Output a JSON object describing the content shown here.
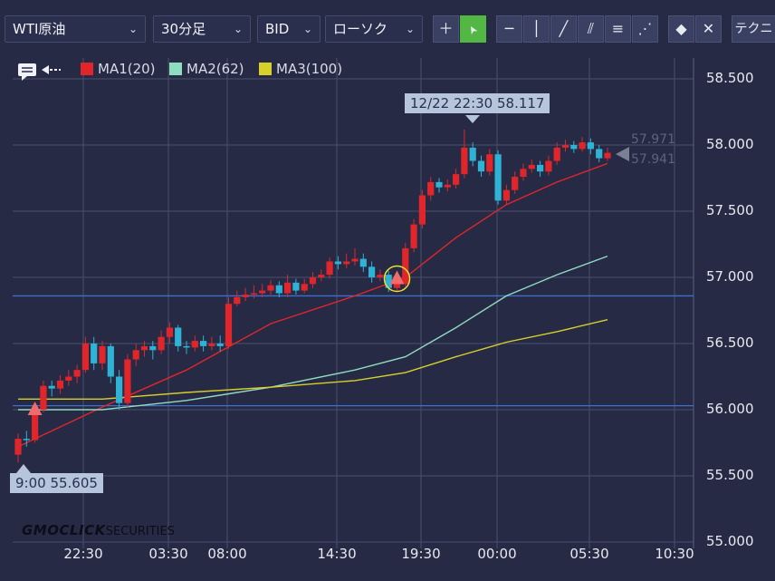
{
  "toolbar": {
    "symbol": "WTI原油",
    "timeframe": "30分足",
    "price_side": "BID",
    "chart_style": "ローソク",
    "technical_label": "テクニ",
    "tools": [
      {
        "icon": "crosshair-icon",
        "glyph": "＋"
      },
      {
        "icon": "pointer-icon",
        "glyph": "➤"
      },
      {
        "icon": "horizontal-line-icon",
        "glyph": "─"
      },
      {
        "icon": "vertical-line-icon",
        "glyph": "│"
      },
      {
        "icon": "trendline-icon",
        "glyph": "╱"
      },
      {
        "icon": "parallel-channel-icon",
        "glyph": "⫽"
      },
      {
        "icon": "fibonacci-retracement-icon",
        "glyph": "≡"
      },
      {
        "icon": "fibonacci-fan-icon",
        "glyph": "⋰"
      },
      {
        "icon": "eraser-icon",
        "glyph": "◆"
      },
      {
        "icon": "erase-all-icon",
        "glyph": "✕"
      }
    ]
  },
  "legend": {
    "ma1": {
      "label": "MA1(20)",
      "color": "#e0262b"
    },
    "ma2": {
      "label": "MA2(62)",
      "color": "#8fdcc0"
    },
    "ma3": {
      "label": "MA3(100)",
      "color": "#d8d02a"
    }
  },
  "y_axis": {
    "labels": [
      "58.500",
      "58.000",
      "57.500",
      "57.000",
      "56.500",
      "56.000",
      "55.500",
      "55.000"
    ]
  },
  "x_axis": {
    "labels": [
      "22:30",
      "03:30",
      "08:00",
      "14:30",
      "19:30",
      "00:00",
      "05:30",
      "10:30"
    ]
  },
  "high_tooltip": "12/22 22:30 58.117",
  "low_tooltip": "9:00 55.605",
  "last_prices": [
    "57.971",
    "57.941"
  ],
  "brand": {
    "main": "GMOCLICK",
    "sub": "SECURITIES"
  },
  "colors": {
    "up": "#e0262b",
    "down": "#2fb2d4",
    "grid": "#4a5070",
    "hline": "#3d6fd0"
  },
  "chart_data": {
    "type": "candlestick",
    "ylim": [
      55.0,
      58.5
    ],
    "x_ticks": [
      "22:30",
      "03:30",
      "08:00",
      "14:30",
      "19:30",
      "00:00",
      "05:30",
      "10:30"
    ],
    "horizontal_lines": [
      56.86,
      56.03
    ],
    "candles": [
      [
        55.66,
        55.78,
        55.6,
        55.82
      ],
      [
        55.78,
        55.77,
        55.72,
        55.84
      ],
      [
        55.77,
        56.0,
        55.75,
        56.05
      ],
      [
        56.0,
        56.18,
        55.98,
        56.22
      ],
      [
        56.18,
        56.16,
        56.1,
        56.22
      ],
      [
        56.16,
        56.22,
        56.12,
        56.26
      ],
      [
        56.22,
        56.25,
        56.18,
        56.3
      ],
      [
        56.25,
        56.3,
        56.2,
        56.34
      ],
      [
        56.3,
        56.5,
        56.28,
        56.55
      ],
      [
        56.5,
        56.35,
        56.3,
        56.55
      ],
      [
        56.35,
        56.48,
        56.3,
        56.52
      ],
      [
        56.48,
        56.25,
        56.2,
        56.5
      ],
      [
        56.25,
        56.05,
        56.0,
        56.3
      ],
      [
        56.05,
        56.38,
        56.02,
        56.42
      ],
      [
        56.38,
        56.45,
        56.33,
        56.5
      ],
      [
        56.45,
        56.48,
        56.4,
        56.52
      ],
      [
        56.48,
        56.45,
        56.38,
        56.52
      ],
      [
        56.45,
        56.55,
        56.42,
        56.6
      ],
      [
        56.55,
        56.62,
        56.5,
        56.66
      ],
      [
        56.62,
        56.48,
        56.44,
        56.64
      ],
      [
        56.48,
        56.47,
        56.42,
        56.52
      ],
      [
        56.47,
        56.52,
        56.44,
        56.56
      ],
      [
        56.52,
        56.48,
        56.44,
        56.56
      ],
      [
        56.48,
        56.5,
        56.45,
        56.55
      ],
      [
        56.5,
        56.48,
        56.44,
        56.56
      ],
      [
        56.48,
        56.8,
        56.46,
        56.85
      ],
      [
        56.8,
        56.85,
        56.78,
        56.9
      ],
      [
        56.85,
        56.87,
        56.82,
        56.92
      ],
      [
        56.87,
        56.88,
        56.84,
        56.94
      ],
      [
        56.88,
        56.9,
        56.85,
        56.95
      ],
      [
        56.9,
        56.94,
        56.87,
        56.98
      ],
      [
        56.94,
        56.88,
        56.85,
        56.97
      ],
      [
        56.88,
        56.96,
        56.85,
        57.02
      ],
      [
        56.96,
        56.9,
        56.87,
        56.99
      ],
      [
        56.9,
        56.95,
        56.88,
        56.99
      ],
      [
        56.95,
        57.0,
        56.92,
        57.04
      ],
      [
        57.0,
        57.02,
        56.97,
        57.06
      ],
      [
        57.02,
        57.12,
        56.99,
        57.15
      ],
      [
        57.12,
        57.1,
        57.06,
        57.16
      ],
      [
        57.1,
        57.12,
        57.07,
        57.18
      ],
      [
        57.12,
        57.14,
        57.09,
        57.22
      ],
      [
        57.14,
        57.08,
        57.04,
        57.18
      ],
      [
        57.08,
        57.0,
        56.96,
        57.12
      ],
      [
        57.0,
        57.02,
        56.97,
        57.06
      ],
      [
        57.02,
        56.92,
        56.89,
        57.05
      ],
      [
        56.92,
        56.95,
        56.9,
        57.0
      ],
      [
        56.95,
        57.22,
        56.93,
        57.26
      ],
      [
        57.22,
        57.4,
        57.19,
        57.44
      ],
      [
        57.4,
        57.62,
        57.37,
        57.66
      ],
      [
        57.62,
        57.72,
        57.58,
        57.76
      ],
      [
        57.72,
        57.68,
        57.64,
        57.75
      ],
      [
        57.68,
        57.7,
        57.65,
        57.74
      ],
      [
        57.7,
        57.78,
        57.67,
        57.82
      ],
      [
        57.78,
        57.98,
        57.75,
        58.117
      ],
      [
        57.98,
        57.88,
        57.84,
        58.02
      ],
      [
        57.88,
        57.8,
        57.76,
        57.92
      ],
      [
        57.8,
        57.93,
        57.77,
        57.97
      ],
      [
        57.93,
        57.58,
        57.55,
        57.96
      ],
      [
        57.58,
        57.66,
        57.55,
        57.7
      ],
      [
        57.66,
        57.76,
        57.63,
        57.8
      ],
      [
        57.76,
        57.82,
        57.73,
        57.86
      ],
      [
        57.82,
        57.85,
        57.79,
        57.89
      ],
      [
        57.85,
        57.8,
        57.76,
        57.88
      ],
      [
        57.8,
        57.88,
        57.77,
        57.92
      ],
      [
        57.88,
        57.98,
        57.85,
        58.02
      ],
      [
        57.98,
        58.0,
        57.95,
        58.04
      ],
      [
        58.0,
        57.97,
        57.94,
        58.03
      ],
      [
        57.97,
        58.02,
        57.95,
        58.06
      ],
      [
        58.02,
        57.97,
        57.93,
        58.05
      ],
      [
        57.97,
        57.9,
        57.87,
        58.0
      ],
      [
        57.9,
        57.941,
        57.88,
        57.98
      ]
    ],
    "ma": [
      {
        "name": "MA1(20)",
        "points": [
          [
            0,
            55.72
          ],
          [
            10,
            56.02
          ],
          [
            20,
            56.3
          ],
          [
            30,
            56.65
          ],
          [
            40,
            56.86
          ],
          [
            46,
            57.0
          ],
          [
            52,
            57.3
          ],
          [
            58,
            57.55
          ],
          [
            64,
            57.72
          ],
          [
            70,
            57.86
          ]
        ]
      },
      {
        "name": "MA2(62)",
        "points": [
          [
            0,
            56.0
          ],
          [
            10,
            56.0
          ],
          [
            20,
            56.07
          ],
          [
            30,
            56.17
          ],
          [
            40,
            56.3
          ],
          [
            46,
            56.4
          ],
          [
            52,
            56.62
          ],
          [
            58,
            56.86
          ],
          [
            64,
            57.02
          ],
          [
            70,
            57.16
          ]
        ]
      },
      {
        "name": "MA3(100)",
        "points": [
          [
            0,
            56.08
          ],
          [
            10,
            56.08
          ],
          [
            20,
            56.13
          ],
          [
            30,
            56.17
          ],
          [
            40,
            56.22
          ],
          [
            46,
            56.28
          ],
          [
            52,
            56.4
          ],
          [
            58,
            56.51
          ],
          [
            64,
            56.59
          ],
          [
            70,
            56.68
          ]
        ]
      }
    ],
    "signals": [
      {
        "type": "buy",
        "index": 2,
        "price": 56.0
      },
      {
        "type": "buy",
        "index": 45,
        "price": 56.99
      }
    ]
  }
}
